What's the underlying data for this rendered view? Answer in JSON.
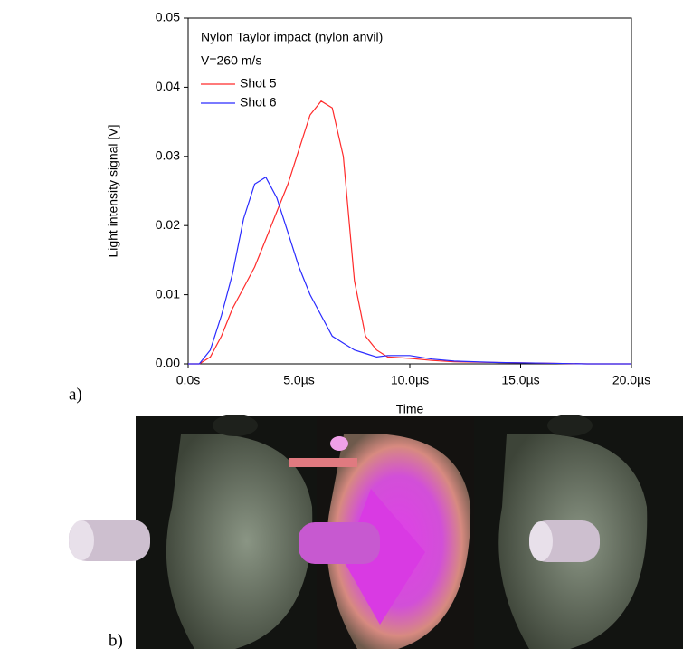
{
  "chart_data": {
    "type": "line",
    "title": "Nylon Taylor impact (nylon anvil)",
    "subtitle": "V=260 m/s",
    "x_label": "Time",
    "y_label": "Light intensity signal [V]",
    "x": [
      0,
      0.5,
      1,
      1.5,
      2,
      2.5,
      3,
      3.5,
      4,
      4.5,
      5,
      5.5,
      6,
      6.5,
      7,
      7.5,
      8,
      8.5,
      9,
      10,
      11,
      12,
      14,
      16,
      18,
      20
    ],
    "series": [
      {
        "name": "Shot 5",
        "color": "#ff2a2a",
        "values": [
          0,
          0,
          0.001,
          0.004,
          0.008,
          0.011,
          0.014,
          0.018,
          0.022,
          0.026,
          0.031,
          0.036,
          0.038,
          0.037,
          0.03,
          0.012,
          0.004,
          0.002,
          0.001,
          0.0008,
          0.0005,
          0.0003,
          0.0002,
          0.0001,
          0,
          0
        ]
      },
      {
        "name": "Shot 6",
        "color": "#2a2aff",
        "values": [
          0,
          0,
          0.002,
          0.007,
          0.013,
          0.021,
          0.026,
          0.027,
          0.024,
          0.019,
          0.014,
          0.01,
          0.007,
          0.004,
          0.003,
          0.002,
          0.0015,
          0.001,
          0.0012,
          0.0012,
          0.0007,
          0.0004,
          0.0002,
          0.0001,
          0,
          0
        ]
      }
    ],
    "xlim": [
      0,
      20
    ],
    "ylim": [
      0,
      0.05
    ],
    "xticks": [
      {
        "value": 0,
        "label": "0.0s"
      },
      {
        "value": 5,
        "label": "5.0µs"
      },
      {
        "value": 10,
        "label": "10.0µs"
      },
      {
        "value": 15,
        "label": "15.0µs"
      },
      {
        "value": 20,
        "label": "20.0µs"
      }
    ],
    "yticks": [
      {
        "value": 0,
        "label": "0.00"
      },
      {
        "value": 0.01,
        "label": "0.01"
      },
      {
        "value": 0.02,
        "label": "0.02"
      },
      {
        "value": 0.03,
        "label": "0.03"
      },
      {
        "value": 0.04,
        "label": "0.04"
      },
      {
        "value": 0.05,
        "label": "0.05"
      }
    ],
    "grid": false,
    "legend": "upper left"
  },
  "panel_labels": [
    "a)",
    "b)"
  ]
}
